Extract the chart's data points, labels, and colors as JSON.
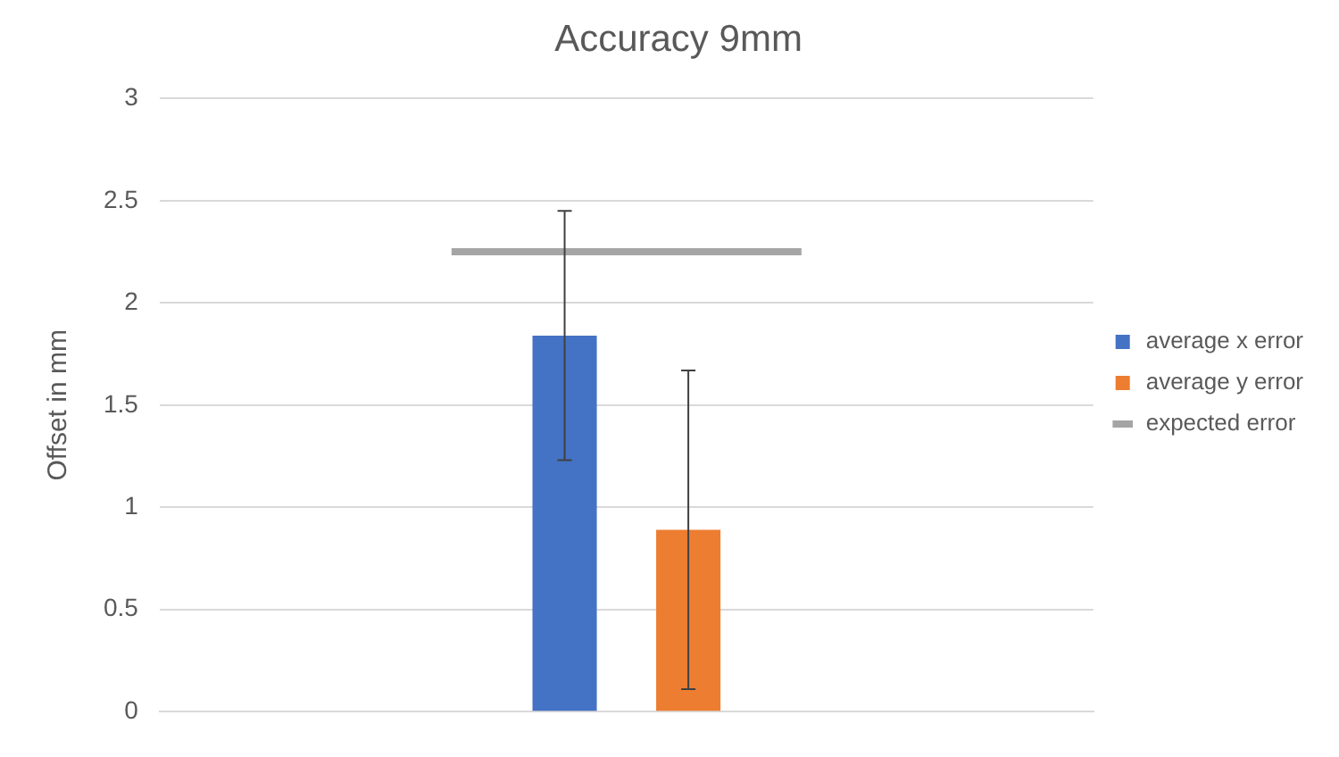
{
  "chart_data": {
    "type": "bar",
    "title": "Accuracy 9mm",
    "ylabel": "Offset in mm",
    "categories": [
      null
    ],
    "series": [
      {
        "name": "average x error",
        "color": "#4472c4",
        "values": [
          1.84
        ],
        "errors": [
          0.61
        ]
      },
      {
        "name": "average y error",
        "color": "#ed7d31",
        "values": [
          0.89
        ],
        "errors": [
          0.78
        ]
      }
    ],
    "ref_lines": [
      {
        "axis": "y",
        "value": 2.25,
        "label": "expected error",
        "color": "#a5a5a5"
      }
    ],
    "ylim": [
      0,
      3
    ],
    "yticks": [
      0,
      0.5,
      1,
      1.5,
      2,
      2.5,
      3
    ],
    "grid": "y",
    "legend": "right"
  }
}
